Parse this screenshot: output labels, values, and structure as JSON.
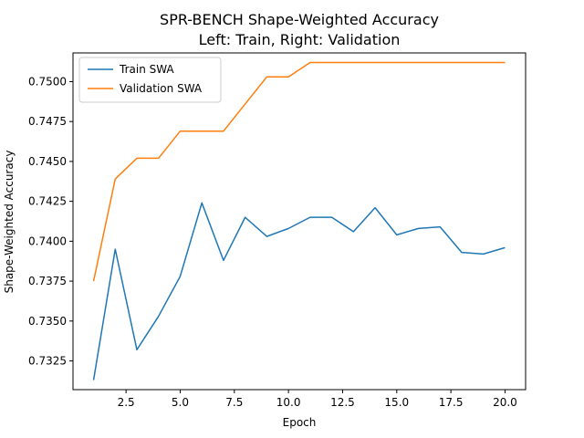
{
  "chart_data": {
    "type": "line",
    "title": "SPR-BENCH Shape-Weighted Accuracy",
    "subtitle": "Left: Train, Right: Validation",
    "xlabel": "Epoch",
    "ylabel": "Shape-Weighted Accuracy",
    "xlim": [
      0.05,
      20.95
    ],
    "ylim": [
      0.7307,
      0.7518
    ],
    "xticks": [
      2.5,
      5.0,
      7.5,
      10.0,
      12.5,
      15.0,
      17.5,
      20.0
    ],
    "xtick_labels": [
      "2.5",
      "5.0",
      "7.5",
      "10.0",
      "12.5",
      "15.0",
      "17.5",
      "20.0"
    ],
    "yticks": [
      0.7325,
      0.735,
      0.7375,
      0.74,
      0.7425,
      0.745,
      0.7475,
      0.75
    ],
    "ytick_labels": [
      "0.7325",
      "0.7350",
      "0.7375",
      "0.7400",
      "0.7425",
      "0.7450",
      "0.7475",
      "0.7500"
    ],
    "grid": false,
    "legend": "top-left",
    "x": [
      1,
      2,
      3,
      4,
      5,
      6,
      7,
      8,
      9,
      10,
      11,
      12,
      13,
      14,
      15,
      16,
      17,
      18,
      19,
      20
    ],
    "series": [
      {
        "name": "Train SWA",
        "color": "#1f77b4",
        "values": [
          0.7313,
          0.7395,
          0.7332,
          0.7353,
          0.7378,
          0.7424,
          0.7388,
          0.7415,
          0.7403,
          0.7408,
          0.7415,
          0.7415,
          0.7406,
          0.7421,
          0.7404,
          0.7408,
          0.7409,
          0.7393,
          0.7392,
          0.7396
        ]
      },
      {
        "name": "Validation SWA",
        "color": "#ff7f0e",
        "values": [
          0.7375,
          0.7439,
          0.7452,
          0.7452,
          0.7469,
          0.7469,
          0.7469,
          0.7486,
          0.7503,
          0.7503,
          0.7512,
          0.7512,
          0.7512,
          0.7512,
          0.7512,
          0.7512,
          0.7512,
          0.7512,
          0.7512,
          0.7512
        ]
      }
    ]
  }
}
